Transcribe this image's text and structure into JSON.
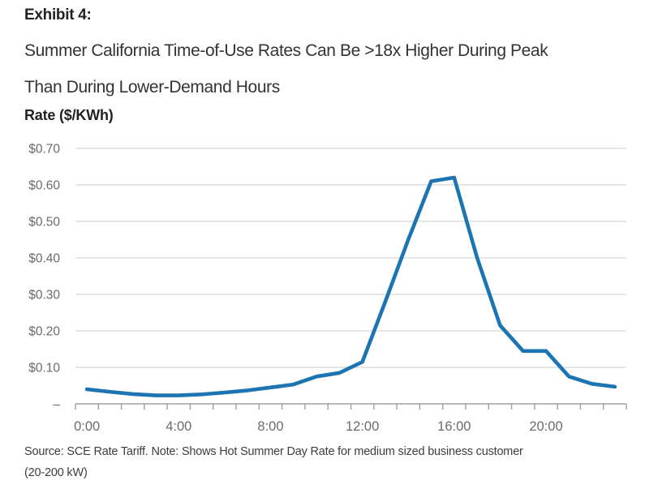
{
  "header": {
    "exhibit_label": "Exhibit 4:",
    "title_line1": "Summer California Time-of-Use Rates Can Be >18x Higher During Peak",
    "title_line2": "Than During Lower-Demand Hours",
    "axis_title": "Rate ($/KWh)"
  },
  "footer": {
    "source_line1": "Source: SCE Rate Tariff. Note: Shows Hot Summer Day Rate for medium sized business customer",
    "source_line2": "(20-200 kW)"
  },
  "chart_data": {
    "type": "line",
    "title": "Summer California Time-of-Use Rates Can Be >18x Higher During Peak Than During Lower-Demand Hours",
    "ylabel": "Rate ($/KWh)",
    "xlabel": "",
    "ylim": [
      0,
      0.7
    ],
    "grid": "horizontal",
    "legend": "none",
    "hours": [
      "0:00",
      "1:00",
      "2:00",
      "3:00",
      "4:00",
      "5:00",
      "6:00",
      "7:00",
      "8:00",
      "9:00",
      "10:00",
      "11:00",
      "12:00",
      "13:00",
      "14:00",
      "15:00",
      "16:00",
      "17:00",
      "18:00",
      "19:00",
      "20:00",
      "21:00",
      "22:00",
      "23:00"
    ],
    "values": [
      0.04,
      0.033,
      0.027,
      0.023,
      0.023,
      0.026,
      0.031,
      0.037,
      0.045,
      0.053,
      0.075,
      0.085,
      0.115,
      0.28,
      0.45,
      0.61,
      0.62,
      0.4,
      0.215,
      0.145,
      0.145,
      0.075,
      0.055,
      0.047
    ],
    "x_ticks": [
      {
        "label": "0:00",
        "hour": 0
      },
      {
        "label": "4:00",
        "hour": 4
      },
      {
        "label": "8:00",
        "hour": 8
      },
      {
        "label": "12:00",
        "hour": 12
      },
      {
        "label": "16:00",
        "hour": 16
      },
      {
        "label": "20:00",
        "hour": 20
      }
    ],
    "y_ticks": [
      {
        "label": "$0.70",
        "value": 0.7
      },
      {
        "label": "$0.60",
        "value": 0.6
      },
      {
        "label": "$0.50",
        "value": 0.5
      },
      {
        "label": "$0.40",
        "value": 0.4
      },
      {
        "label": "$0.30",
        "value": 0.3
      },
      {
        "label": "$0.20",
        "value": 0.2
      },
      {
        "label": "$0.10",
        "value": 0.1
      },
      {
        "label": "–",
        "value": 0
      }
    ],
    "line_color": "#1C75B2",
    "gridline_color": "#d6d6d6",
    "axis_color": "#a0a0a0",
    "tick_label_color": "#6b6b6b"
  }
}
